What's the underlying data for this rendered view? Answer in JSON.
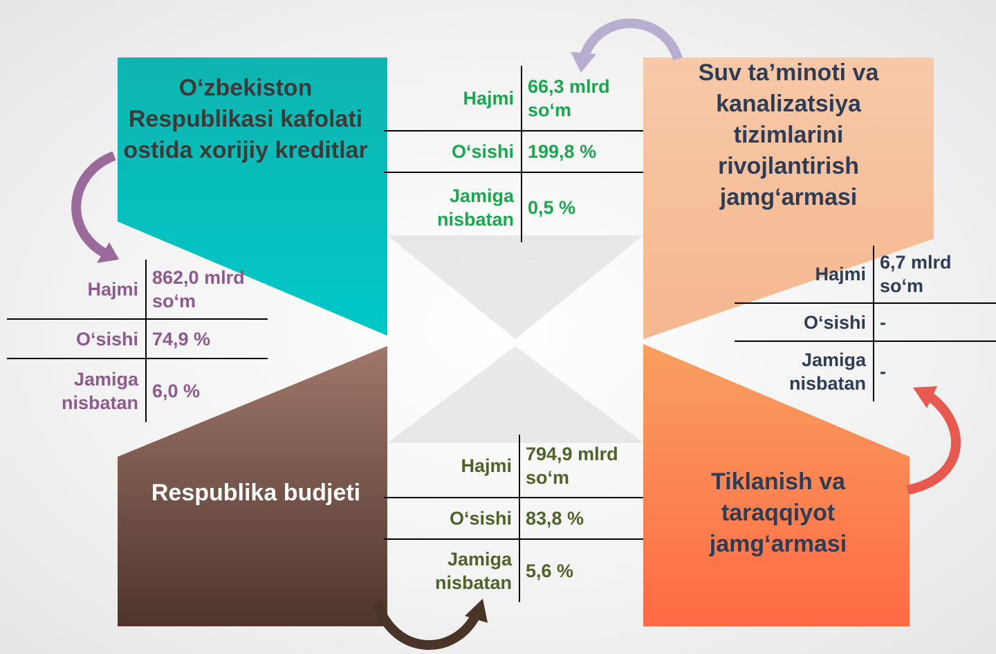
{
  "panels": [
    {
      "title": "O‘zbekiston Respublikasi kafolati ostida xorijiy kreditlar",
      "rows": [
        {
          "label": "Hajmi",
          "value": "862,0 mlrd so‘m"
        },
        {
          "label": "O‘sishi",
          "value": "74,9 %"
        },
        {
          "label": "Jamiga nisbatan",
          "value": "6,0 %"
        }
      ]
    },
    {
      "title": "Suv ta’minoti va kanalizatsiya tizimlarini rivojlantirish jamg‘armasi",
      "rows": [
        {
          "label": "Hajmi",
          "value": "6,7 mlrd so‘m"
        },
        {
          "label": "O‘sishi",
          "value": "-"
        },
        {
          "label": "Jamiga nisbatan",
          "value": "-"
        }
      ]
    },
    {
      "title": "Respublika budjeti",
      "rows": [
        {
          "label": "Hajmi",
          "value": "794,9 mlrd so‘m"
        },
        {
          "label": "O‘sishi",
          "value": "83,8 %"
        },
        {
          "label": "Jamiga nisbatan",
          "value": "5,6 %"
        }
      ]
    },
    {
      "title": "Tiklanish va taraqqiyot jamg‘armasi",
      "rows": [
        {
          "label": "Hajmi",
          "value": "66,3 mlrd so‘m"
        },
        {
          "label": "O‘sishi",
          "value": "199,8 %"
        },
        {
          "label": "Jamiga nisbatan",
          "value": "0,5 %"
        }
      ]
    }
  ]
}
